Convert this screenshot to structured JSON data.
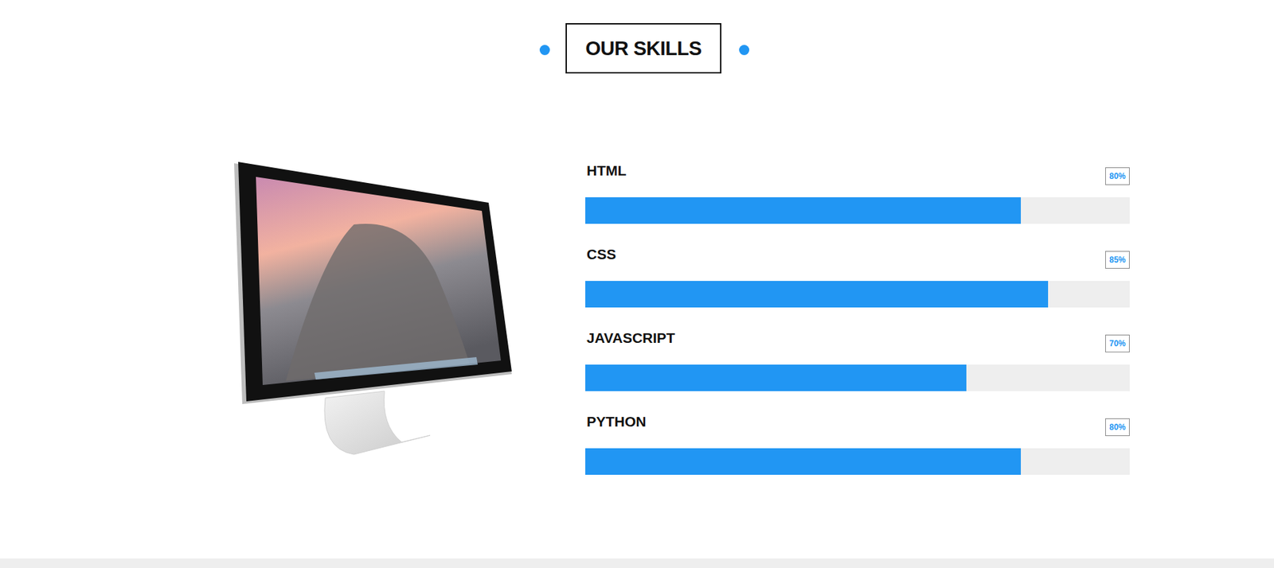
{
  "chart_data": {
    "type": "bar",
    "title": "OUR SKILLS",
    "orientation": "horizontal",
    "categories": [
      "HTML",
      "CSS",
      "JAVASCRIPT",
      "PYTHON"
    ],
    "values": [
      80,
      85,
      70,
      80
    ],
    "value_labels": [
      "80%",
      "85%",
      "70%",
      "80%"
    ],
    "data_labels": true,
    "color": "#2196f3",
    "xlim": [
      0,
      100
    ],
    "tick_labels": false,
    "grid": false
  }
}
